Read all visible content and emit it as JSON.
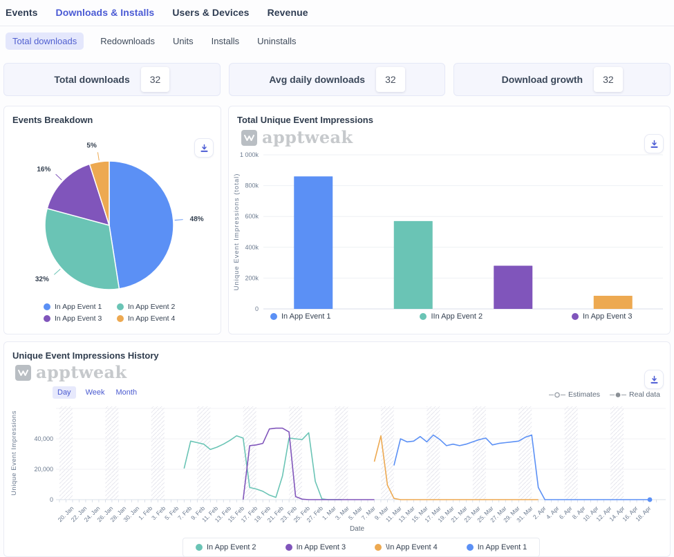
{
  "nav": {
    "items": [
      {
        "label": "Events",
        "active": false
      },
      {
        "label": "Downloads & Installs",
        "active": true
      },
      {
        "label": "Users & Devices",
        "active": false
      },
      {
        "label": "Revenue",
        "active": false
      }
    ]
  },
  "subnav": {
    "items": [
      {
        "label": "Total downloads",
        "active": true
      },
      {
        "label": "Redownloads",
        "active": false
      },
      {
        "label": "Units",
        "active": false
      },
      {
        "label": "Installs",
        "active": false
      },
      {
        "label": "Uninstalls",
        "active": false
      }
    ]
  },
  "stats": [
    {
      "label": "Total downloads",
      "value": "32"
    },
    {
      "label": "Avg daily downloads",
      "value": "32"
    },
    {
      "label": "Download growth",
      "value": "32"
    }
  ],
  "watermark": {
    "text": "apptweak"
  },
  "palette": {
    "blue": "#5B90F5",
    "teal": "#6AC4B5",
    "purple": "#8055BB",
    "orange": "#EDA951",
    "accent": "#4A5AD4"
  },
  "panels": {
    "events_breakdown": {
      "title": "Events Breakdown"
    },
    "total_impressions": {
      "title": "Total Unique Event Impressions"
    },
    "history": {
      "title": "Unique Event Impressions History",
      "toggle": [
        "Day",
        "Week",
        "Month"
      ],
      "active_toggle": "Day",
      "estimates_label": "Estimates",
      "real_data_label": "Real data"
    }
  },
  "chart_data": [
    {
      "id": "events-breakdown",
      "type": "pie",
      "labels": [
        "In App Event 1",
        "In App Event 2",
        "In App Event 3",
        "In App Event 4"
      ],
      "values": [
        48,
        32,
        16,
        5
      ],
      "percent_labels": [
        "48%",
        "32%",
        "16%",
        "5%"
      ],
      "colors": [
        "#5B90F5",
        "#6AC4B5",
        "#8055BB",
        "#EDA951"
      ]
    },
    {
      "id": "total-unique-event-impressions",
      "type": "bar",
      "categories": [
        "In App Event 1",
        "IIn App Event 2",
        "In App Event 3",
        "In App Event 4"
      ],
      "values": [
        860000,
        570000,
        280000,
        85000
      ],
      "colors": [
        "#5B90F5",
        "#6AC4B5",
        "#8055BB",
        "#EDA951"
      ],
      "ylabel": "Unique Event Impressions (total)",
      "ylim": [
        0,
        1000000
      ],
      "yticks": [
        [
          0,
          "0"
        ],
        [
          200000,
          "200k"
        ],
        [
          400000,
          "400k"
        ],
        [
          600000,
          "600k"
        ],
        [
          800000,
          "800k"
        ],
        [
          1000000,
          "1 000k"
        ]
      ]
    },
    {
      "id": "unique-event-impressions-history",
      "type": "line",
      "xlabel": "Date",
      "ylabel": "Unique Event Impressions",
      "ylim": [
        0,
        58000
      ],
      "yticks": [
        [
          0,
          "0"
        ],
        [
          20000,
          "20,000"
        ],
        [
          40000,
          "40,000"
        ]
      ],
      "grid_levels": [
        20000,
        40000,
        60000
      ],
      "x_tick_labels": [
        "20. Jan",
        "22. Jan",
        "24. Jan",
        "26. Jan",
        "28. Jan",
        "30. Jan",
        "1. Feb",
        "3. Feb",
        "5. Feb",
        "7. Feb",
        "9. Feb",
        "11. Feb",
        "13. Feb",
        "15. Feb",
        "17. Feb",
        "19. Feb",
        "21. Feb",
        "23. Feb",
        "25. Feb",
        "27. Feb",
        "1. Mar",
        "3. Mar",
        "5. Mar",
        "7. Mar",
        "9. Mar",
        "11. Mar",
        "13. Mar",
        "15. Mar",
        "17. Mar",
        "19. Mar",
        "21. Mar",
        "23. Mar",
        "25. Mar",
        "27. Mar",
        "29. Mar",
        "31. Mar",
        "2. Apr",
        "4. Apr",
        "6. Apr",
        "8. Apr",
        "10. Apr",
        "12. Apr",
        "14. Apr",
        "16. Apr",
        "18. Apr"
      ],
      "x_label_day_step": 2,
      "day_domain": [
        -2,
        90
      ],
      "weekend_bands": [
        [
          -2,
          0
        ],
        [
          5,
          7
        ],
        [
          12,
          14
        ],
        [
          19,
          21
        ],
        [
          26,
          28
        ],
        [
          33,
          35
        ],
        [
          40,
          42
        ],
        [
          47,
          49
        ],
        [
          54,
          56
        ],
        [
          61,
          63
        ],
        [
          68,
          70
        ],
        [
          75,
          77
        ],
        [
          82,
          84
        ]
      ],
      "series": [
        {
          "name": "In App Event 2",
          "color": "#6AC4B5",
          "points": [
            [
              17,
              20500
            ],
            [
              18,
              38500
            ],
            [
              19,
              37500
            ],
            [
              20,
              36500
            ],
            [
              21,
              33000
            ],
            [
              22,
              34500
            ],
            [
              23,
              36500
            ],
            [
              24,
              39000
            ],
            [
              25,
              42000
            ],
            [
              26,
              40500
            ],
            [
              27,
              8000
            ],
            [
              28,
              7000
            ],
            [
              29,
              5500
            ],
            [
              30,
              3000
            ],
            [
              31,
              1500
            ],
            [
              32,
              15500
            ],
            [
              33,
              40500
            ],
            [
              34,
              40000
            ],
            [
              35,
              39500
            ],
            [
              36,
              44000
            ],
            [
              37,
              12000
            ],
            [
              38,
              500
            ],
            [
              39,
              0
            ],
            [
              41,
              0
            ]
          ]
        },
        {
          "name": "In App Event 3",
          "color": "#8055BB",
          "points": [
            [
              26,
              0
            ],
            [
              27,
              35500
            ],
            [
              28,
              36000
            ],
            [
              29,
              37000
            ],
            [
              30,
              46500
            ],
            [
              31,
              47000
            ],
            [
              32,
              47000
            ],
            [
              33,
              44500
            ],
            [
              34,
              2000
            ],
            [
              35,
              300
            ],
            [
              36,
              0
            ],
            [
              46,
              0
            ]
          ]
        },
        {
          "name": "\\In App Event 4",
          "color": "#EDA951",
          "points": [
            [
              46,
              25000
            ],
            [
              47,
              42000
            ],
            [
              48,
              9500
            ],
            [
              49,
              800
            ],
            [
              50,
              0
            ],
            [
              71,
              0
            ]
          ]
        },
        {
          "name": "In App Event 1",
          "color": "#5B90F5",
          "end_marker": true,
          "points": [
            [
              49,
              22500
            ],
            [
              50,
              40000
            ],
            [
              51,
              38000
            ],
            [
              52,
              38500
            ],
            [
              53,
              41500
            ],
            [
              54,
              38000
            ],
            [
              55,
              42500
            ],
            [
              56,
              39500
            ],
            [
              57,
              35500
            ],
            [
              58,
              36500
            ],
            [
              59,
              35500
            ],
            [
              60,
              36500
            ],
            [
              61,
              38000
            ],
            [
              62,
              39500
            ],
            [
              63,
              40500
            ],
            [
              64,
              36000
            ],
            [
              65,
              37000
            ],
            [
              66,
              37500
            ],
            [
              67,
              38000
            ],
            [
              68,
              38500
            ],
            [
              69,
              41000
            ],
            [
              70,
              42500
            ],
            [
              71,
              8000
            ],
            [
              72,
              0
            ],
            [
              88,
              0
            ]
          ]
        }
      ],
      "legend_order": [
        0,
        1,
        2,
        3
      ]
    }
  ]
}
